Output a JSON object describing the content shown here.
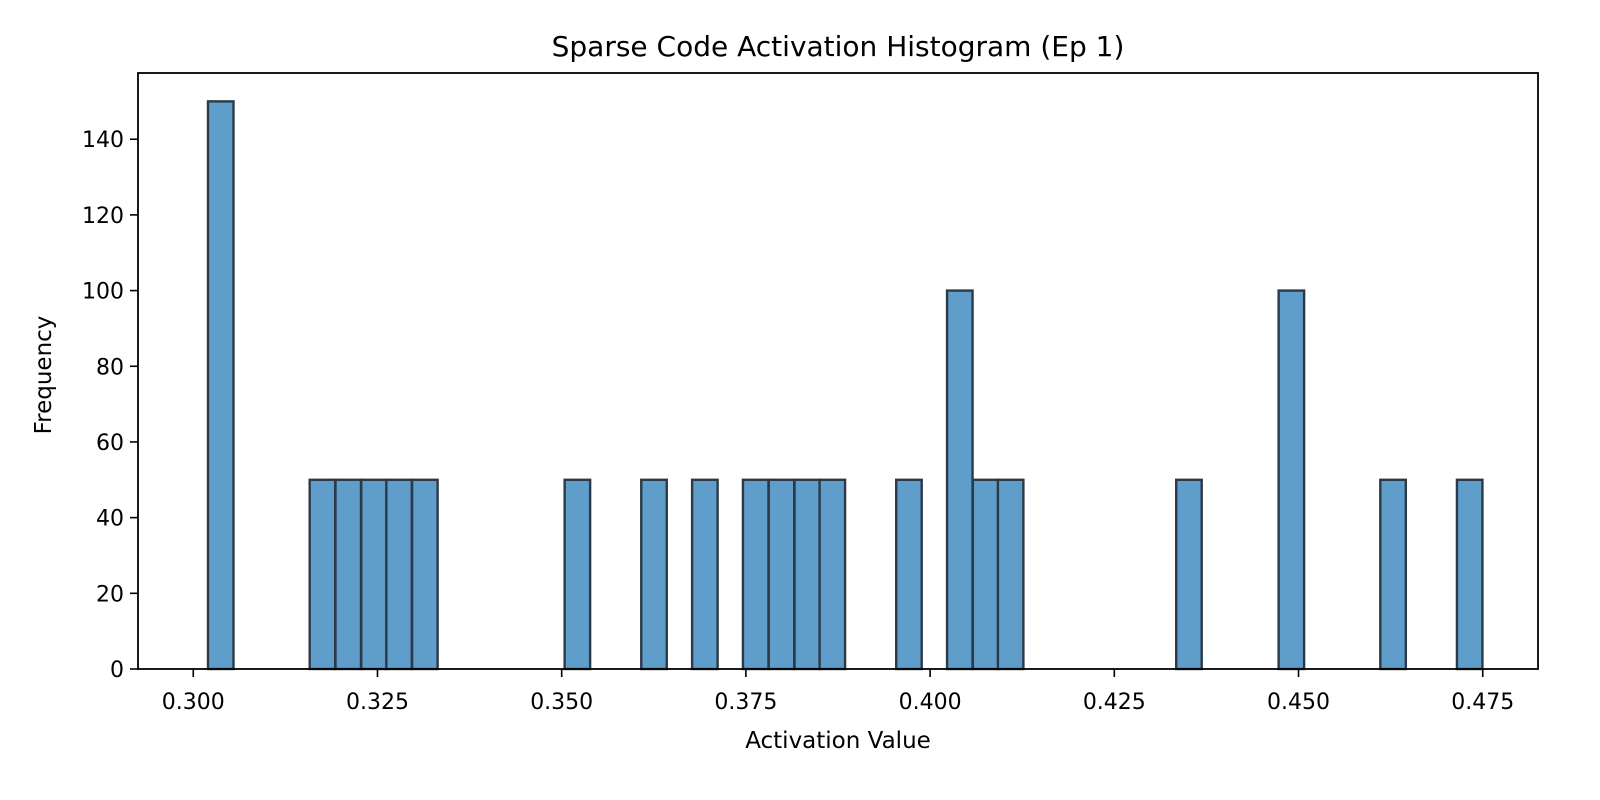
{
  "chart_data": {
    "type": "bar",
    "title": "Sparse Code Activation Histogram (Ep 1)",
    "xlabel": "Activation Value",
    "ylabel": "Frequency",
    "xlim": [
      0.2925,
      0.4825
    ],
    "ylim": [
      0,
      157.5
    ],
    "bin_width": 0.00346,
    "x_ticks": [
      {
        "value": 0.3,
        "label": "0.300"
      },
      {
        "value": 0.325,
        "label": "0.325"
      },
      {
        "value": 0.35,
        "label": "0.350"
      },
      {
        "value": 0.375,
        "label": "0.375"
      },
      {
        "value": 0.4,
        "label": "0.400"
      },
      {
        "value": 0.425,
        "label": "0.425"
      },
      {
        "value": 0.45,
        "label": "0.450"
      },
      {
        "value": 0.475,
        "label": "0.475"
      }
    ],
    "y_ticks": [
      {
        "value": 0,
        "label": "0"
      },
      {
        "value": 20,
        "label": "20"
      },
      {
        "value": 40,
        "label": "40"
      },
      {
        "value": 60,
        "label": "60"
      },
      {
        "value": 80,
        "label": "80"
      },
      {
        "value": 100,
        "label": "100"
      },
      {
        "value": 120,
        "label": "120"
      },
      {
        "value": 140,
        "label": "140"
      }
    ],
    "bins": [
      {
        "x0": 0.302,
        "count": 150
      },
      {
        "x0": 0.3158,
        "count": 50
      },
      {
        "x0": 0.3193,
        "count": 50
      },
      {
        "x0": 0.3228,
        "count": 50
      },
      {
        "x0": 0.3262,
        "count": 50
      },
      {
        "x0": 0.3297,
        "count": 50
      },
      {
        "x0": 0.3504,
        "count": 50
      },
      {
        "x0": 0.3608,
        "count": 50
      },
      {
        "x0": 0.3677,
        "count": 50
      },
      {
        "x0": 0.3746,
        "count": 50
      },
      {
        "x0": 0.3781,
        "count": 50
      },
      {
        "x0": 0.3816,
        "count": 50
      },
      {
        "x0": 0.385,
        "count": 50
      },
      {
        "x0": 0.3954,
        "count": 50
      },
      {
        "x0": 0.4023,
        "count": 100
      },
      {
        "x0": 0.4058,
        "count": 50
      },
      {
        "x0": 0.4092,
        "count": 50
      },
      {
        "x0": 0.4334,
        "count": 50
      },
      {
        "x0": 0.4473,
        "count": 100
      },
      {
        "x0": 0.4611,
        "count": 50
      },
      {
        "x0": 0.4715,
        "count": 50
      }
    ],
    "bar_color": "#5f9ecb",
    "edge_color": "#2c3a48",
    "grid": false,
    "legend": "none"
  }
}
